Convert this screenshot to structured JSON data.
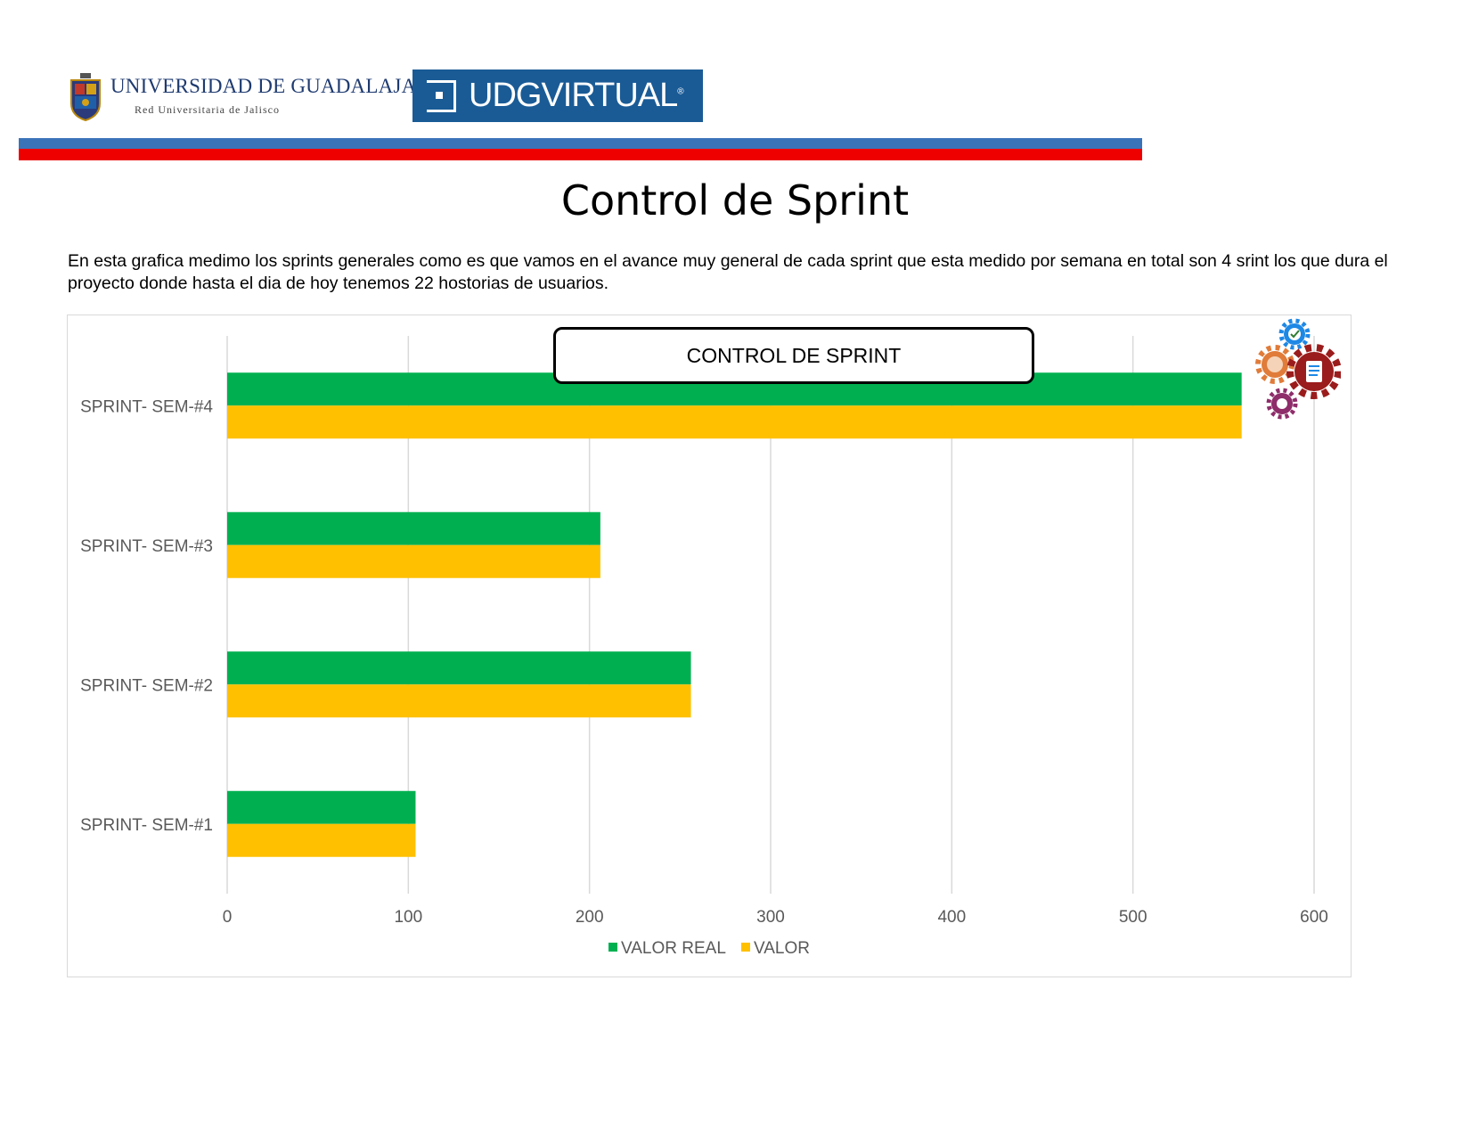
{
  "header": {
    "udg_title": "UNIVERSIDAD DE GUADALAJARA",
    "udg_subtitle": "Red Universitaria de Jalisco",
    "udgvirtual_label": "UDGVIRTUAL",
    "udgvirtual_reg": "®"
  },
  "colors": {
    "blue_stripe": "#3b73b9",
    "red_stripe": "#ee0000",
    "valor_real": "#00b050",
    "valor": "#ffc000"
  },
  "page": {
    "title": "Control de Sprint",
    "intro": "En esta grafica medimo los sprints generales como es que vamos en el avance muy general de cada sprint que esta medido por semana en total son 4 srint los que dura el proyecto donde hasta el dia de hoy tenemos 22 hostorias de usuarios."
  },
  "chart_data": {
    "type": "bar",
    "orientation": "horizontal",
    "title": "CONTROL DE SPRINT",
    "categories": [
      "SPRINT- SEM-#4",
      "SPRINT- SEM-#3",
      "SPRINT- SEM-#2",
      "SPRINT- SEM-#1"
    ],
    "series": [
      {
        "name": "VALOR REAL",
        "values": [
          560,
          206,
          256,
          104
        ],
        "color": "#00b050"
      },
      {
        "name": "VALOR",
        "values": [
          560,
          206,
          256,
          104
        ],
        "color": "#ffc000"
      }
    ],
    "xlim": [
      0,
      600
    ],
    "xticks": [
      0,
      100,
      200,
      300,
      400,
      500,
      600
    ],
    "grid": true,
    "legend_position": "bottom"
  },
  "icons": {
    "gears": "gears-icon"
  }
}
